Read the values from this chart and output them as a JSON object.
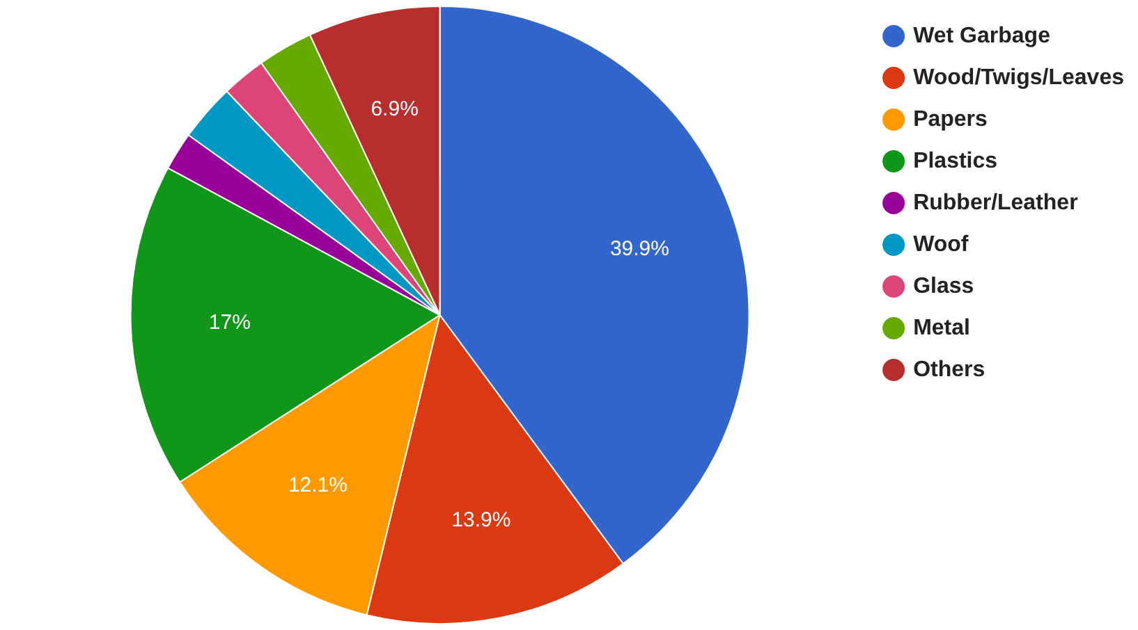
{
  "chart_data": {
    "type": "pie",
    "categories": [
      "Wet Garbage",
      "Wood/Twigs/Leaves",
      "Papers",
      "Plastics",
      "Rubber/Leather",
      "Woof",
      "Glass",
      "Metal",
      "Others"
    ],
    "values": [
      39.9,
      13.9,
      12.1,
      17,
      2.0,
      3.0,
      2.3,
      2.9,
      6.9
    ],
    "value_labels": [
      "39.9%",
      "13.9%",
      "12.1%",
      "17%",
      null,
      null,
      null,
      null,
      "6.9%"
    ],
    "colors": [
      "#3366cc",
      "#dc3912",
      "#ff9900",
      "#109618",
      "#990099",
      "#0099c6",
      "#dd4477",
      "#66aa00",
      "#b82e2e"
    ],
    "legend": "right"
  }
}
